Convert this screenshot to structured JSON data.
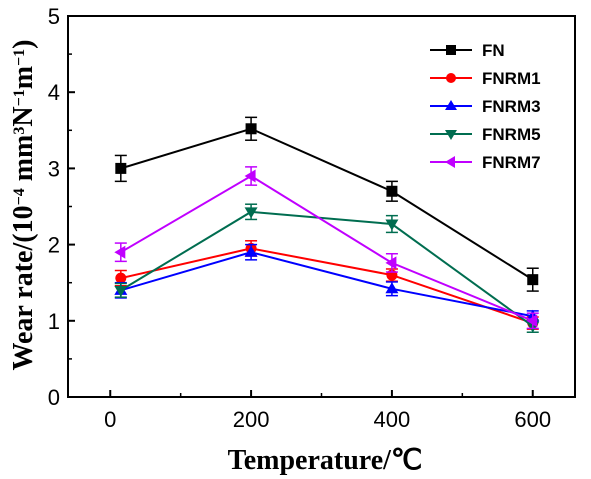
{
  "chart_data": {
    "type": "line",
    "xlabel": "Temperature/℃",
    "ylabel_parts": [
      "Wear rate/(10",
      "−4",
      " mm",
      "3",
      "N",
      "−1",
      "m",
      "−1",
      ")"
    ],
    "xlim": [
      -60,
      660
    ],
    "ylim": [
      0,
      5
    ],
    "x_ticks": [
      0,
      200,
      400,
      600
    ],
    "y_ticks": [
      0,
      1,
      2,
      3,
      4,
      5
    ],
    "x": [
      15,
      200,
      400,
      600
    ],
    "grid": false,
    "legend_position": "top-right",
    "series": [
      {
        "name": "FN",
        "color": "#000000",
        "marker": "square",
        "values": [
          3.0,
          3.52,
          2.7,
          1.54
        ],
        "errors": [
          0.17,
          0.15,
          0.13,
          0.15
        ]
      },
      {
        "name": "FNRM1",
        "color": "#ff0000",
        "marker": "circle",
        "values": [
          1.56,
          1.95,
          1.6,
          0.97
        ],
        "errors": [
          0.1,
          0.1,
          0.08,
          0.08
        ]
      },
      {
        "name": "FNRM3",
        "color": "#0000ff",
        "marker": "triangle-up",
        "values": [
          1.4,
          1.9,
          1.42,
          1.06
        ],
        "errors": [
          0.1,
          0.1,
          0.09,
          0.07
        ]
      },
      {
        "name": "FNRM5",
        "color": "#006d50",
        "marker": "triangle-down",
        "values": [
          1.4,
          2.43,
          2.27,
          0.93
        ],
        "errors": [
          0.09,
          0.1,
          0.11,
          0.08
        ]
      },
      {
        "name": "FNRM7",
        "color": "#c000ff",
        "marker": "triangle-left",
        "values": [
          1.9,
          2.9,
          1.76,
          1.0
        ],
        "errors": [
          0.12,
          0.12,
          0.12,
          0.1
        ]
      }
    ]
  }
}
